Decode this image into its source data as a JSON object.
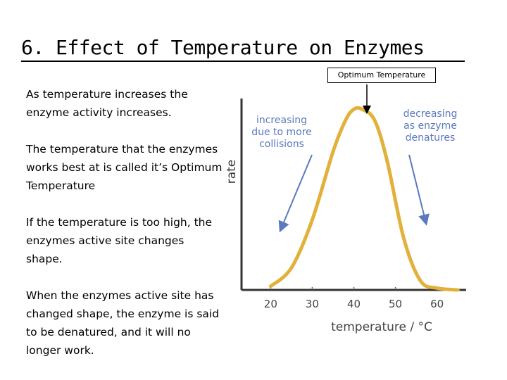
{
  "slide": {
    "title": "6. Effect of Temperature on Enzymes",
    "callout": "Optimum Temperature",
    "paragraphs": [
      "As temperature increases the enzyme activity increases.",
      "The temperature that the enzymes works best at is called it’s Optimum Temperature",
      "If the temperature is too high, the enzymes active site changes shape.",
      "When the enzymes active site has changed shape, the enzyme is said to be denatured, and it will no longer work."
    ]
  },
  "chart_data": {
    "type": "line",
    "xlabel": "temperature / °C",
    "ylabel": "rate",
    "xticks": [
      20,
      30,
      40,
      50,
      60
    ],
    "xlim": [
      13,
      67
    ],
    "ylim": [
      0,
      100
    ],
    "series": [
      {
        "x": [
          20,
          25,
          30,
          35,
          38,
          40,
          42,
          45,
          48,
          52,
          56,
          60,
          65
        ],
        "y": [
          2,
          12,
          38,
          75,
          92,
          98,
          98,
          92,
          70,
          28,
          5,
          1,
          0
        ]
      }
    ],
    "annotations": [
      {
        "lines": [
          "increasing",
          "due to more",
          "collisions"
        ]
      },
      {
        "lines": [
          "decreasing",
          "as enzyme",
          "denatures"
        ]
      }
    ],
    "colors": {
      "curve": "#e2b13c",
      "annotation": "#5b78c0",
      "axis": "#333333"
    }
  }
}
